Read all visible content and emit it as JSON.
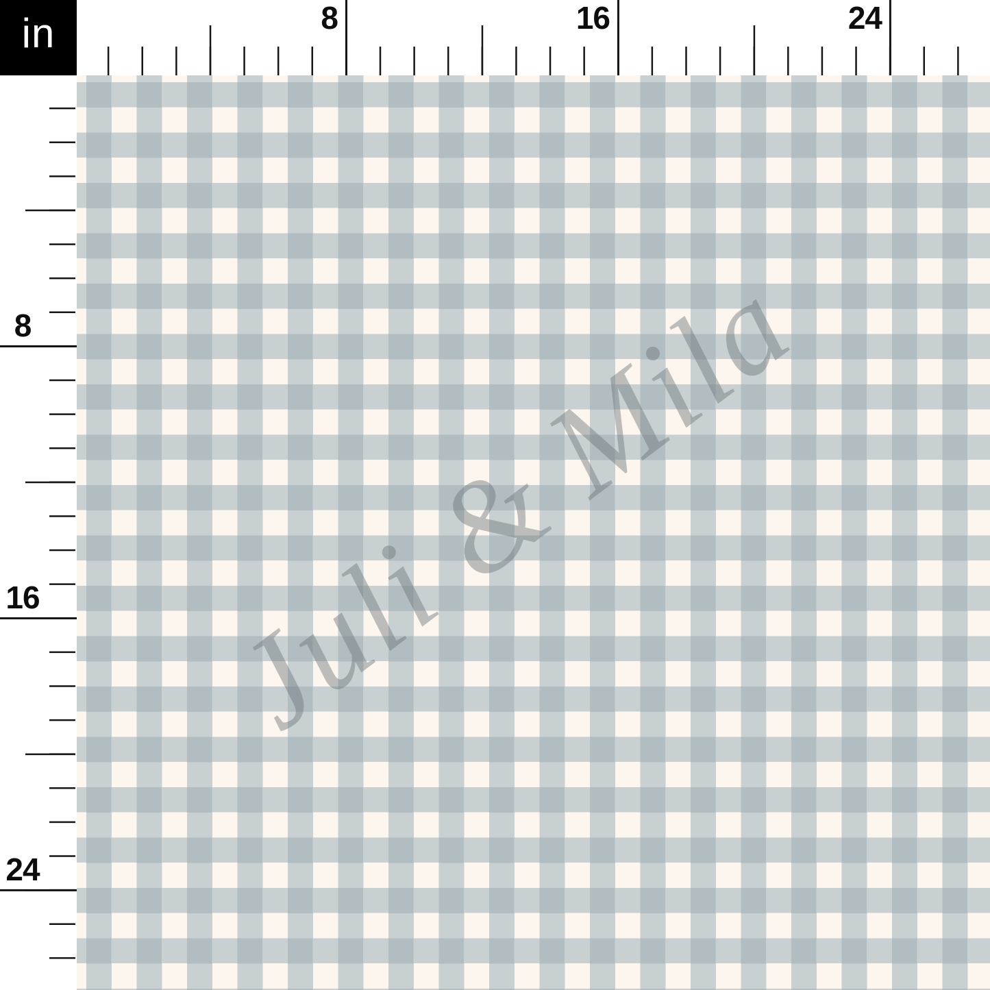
{
  "unit_square": {
    "label": "in"
  },
  "top_ruler": {
    "labels": [
      "8",
      "16",
      "24"
    ],
    "tick_interval_inches": 1,
    "medium_tick_every_inches": 4,
    "labeled_tick_every_inches": 8
  },
  "left_ruler": {
    "labels": [
      "8",
      "16",
      "24"
    ],
    "tick_interval_inches": 1,
    "medium_tick_every_inches": 4,
    "labeled_tick_every_inches": 8
  },
  "watermark": {
    "text": "Juli & Mila",
    "rotation_deg": -37,
    "opacity": 0.45
  },
  "pattern": {
    "type": "gingham-check",
    "check_size_inches": 0.75,
    "colors": {
      "cream": "#FDF6EE",
      "stripe": "#C8D0D2",
      "overlap": "#B2BDC1",
      "tick": "#151515",
      "ruler_bg": "#FFFFFF",
      "corner_bg": "#000000",
      "corner_text": "#FFFFFF",
      "watermark": "#6E787C"
    }
  }
}
